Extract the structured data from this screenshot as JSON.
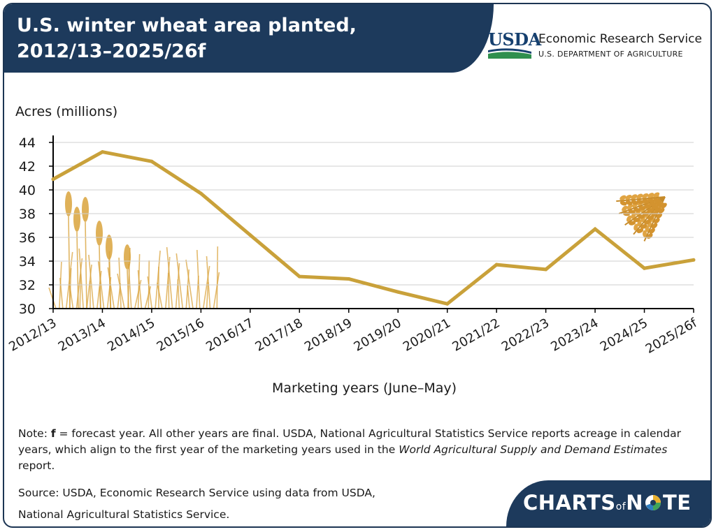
{
  "header": {
    "title_line1": "U.S. winter wheat area planted,",
    "title_line2": "2012/13–2025/26f",
    "org_logo": "USDA",
    "org_name": "Economic Research Service",
    "org_dept": "U.S. DEPARTMENT OF AGRICULTURE"
  },
  "chart_data": {
    "type": "line",
    "title": "U.S. winter wheat area planted, 2012/13–2025/26f",
    "ylabel": "Acres (millions)",
    "xlabel": "Marketing years (June–May)",
    "ylim": [
      30,
      44
    ],
    "yticks": [
      30,
      32,
      34,
      36,
      38,
      40,
      42,
      44
    ],
    "grid": true,
    "categories": [
      "2012/13",
      "2013/14",
      "2014/15",
      "2015/16",
      "2016/17",
      "2017/18",
      "2018/19",
      "2019/20",
      "2020/21",
      "2021/22",
      "2022/23",
      "2023/24",
      "2024/25",
      "2025/26f"
    ],
    "series": [
      {
        "values": [
          40.9,
          43.2,
          42.4,
          39.7,
          36.2,
          32.7,
          32.5,
          31.4,
          30.4,
          33.7,
          33.3,
          36.7,
          33.4,
          34.1
        ],
        "color": "#c9a13a"
      }
    ]
  },
  "footnotes": {
    "note_label": "Note: ",
    "note_bold": "f",
    "note_text1": " = forecast year. All other years are final. USDA, National Agricultural Statistics Service reports acreage in calendar years, which align to the first year of the marketing years used in the ",
    "note_italic": "World Agricultural Supply and Demand Estimates",
    "note_text2": " report.",
    "source_line1": "Source: USDA, Economic Research Service using data from USDA,",
    "source_line2": "National Agricultural Statistics Service."
  },
  "footer": {
    "brand_part1": "CHARTS",
    "brand_part2": "of",
    "brand_part3": "N",
    "brand_part4": "TE"
  },
  "colors": {
    "navy": "#1d3a5c",
    "line": "#c9a13a",
    "grid": "#cfcfcf",
    "wheat": "#d9a33c"
  }
}
